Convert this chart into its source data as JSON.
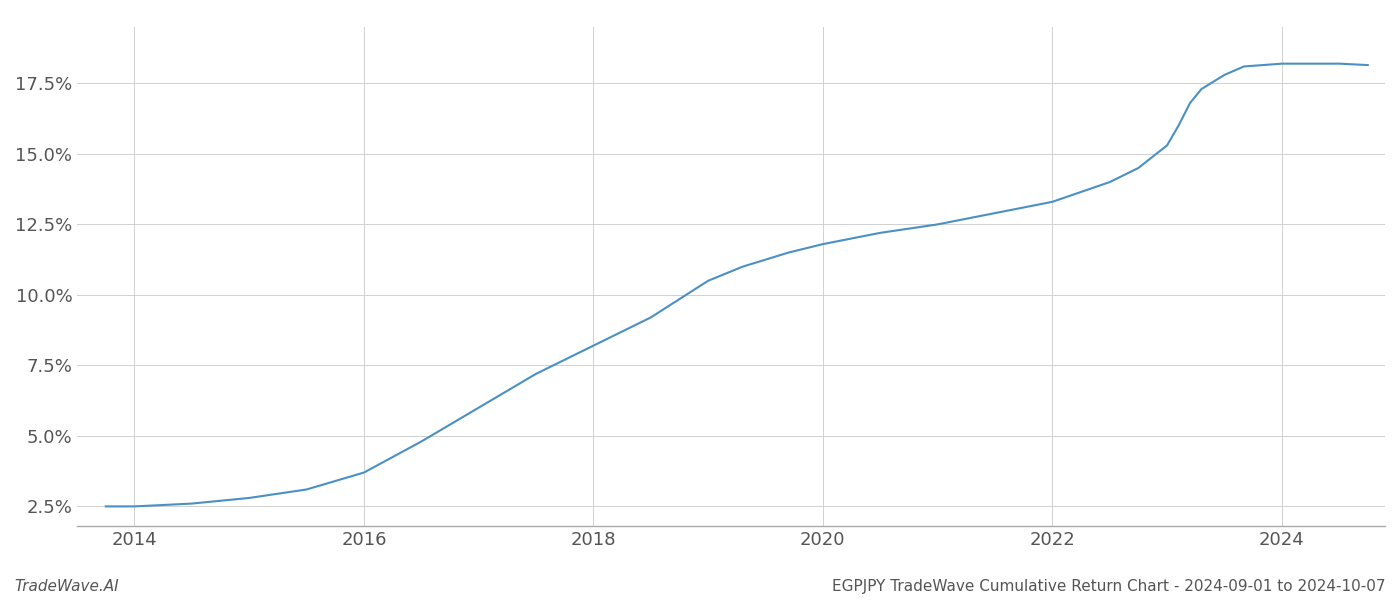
{
  "x_years": [
    2013.75,
    2014.0,
    2014.5,
    2015.0,
    2015.5,
    2016.0,
    2016.5,
    2017.0,
    2017.5,
    2018.0,
    2018.5,
    2019.0,
    2019.3,
    2019.7,
    2020.0,
    2020.5,
    2021.0,
    2021.5,
    2022.0,
    2022.5,
    2022.75,
    2023.0,
    2023.1,
    2023.2,
    2023.3,
    2023.5,
    2023.67,
    2024.0,
    2024.5,
    2024.75
  ],
  "y_values": [
    2.5,
    2.5,
    2.6,
    2.8,
    3.1,
    3.7,
    4.8,
    6.0,
    7.2,
    8.2,
    9.2,
    10.5,
    11.0,
    11.5,
    11.8,
    12.2,
    12.5,
    12.9,
    13.3,
    14.0,
    14.5,
    15.3,
    16.0,
    16.8,
    17.3,
    17.8,
    18.1,
    18.2,
    18.2,
    18.15
  ],
  "line_color": "#4a90c4",
  "line_width": 1.5,
  "background_color": "#ffffff",
  "grid_color": "#cccccc",
  "title": "EGPJPY TradeWave Cumulative Return Chart - 2024-09-01 to 2024-10-07",
  "footer_left": "TradeWave.AI",
  "footer_right": "EGPJPY TradeWave Cumulative Return Chart - 2024-09-01 to 2024-10-07",
  "xlim": [
    2013.5,
    2024.9
  ],
  "ylim": [
    1.8,
    19.5
  ],
  "yticks": [
    2.5,
    5.0,
    7.5,
    10.0,
    12.5,
    15.0,
    17.5
  ],
  "xticks": [
    2014,
    2016,
    2018,
    2020,
    2022,
    2024
  ],
  "tick_label_color": "#555555",
  "footer_fontsize": 11,
  "tick_fontsize": 13,
  "spine_color": "#aaaaaa"
}
